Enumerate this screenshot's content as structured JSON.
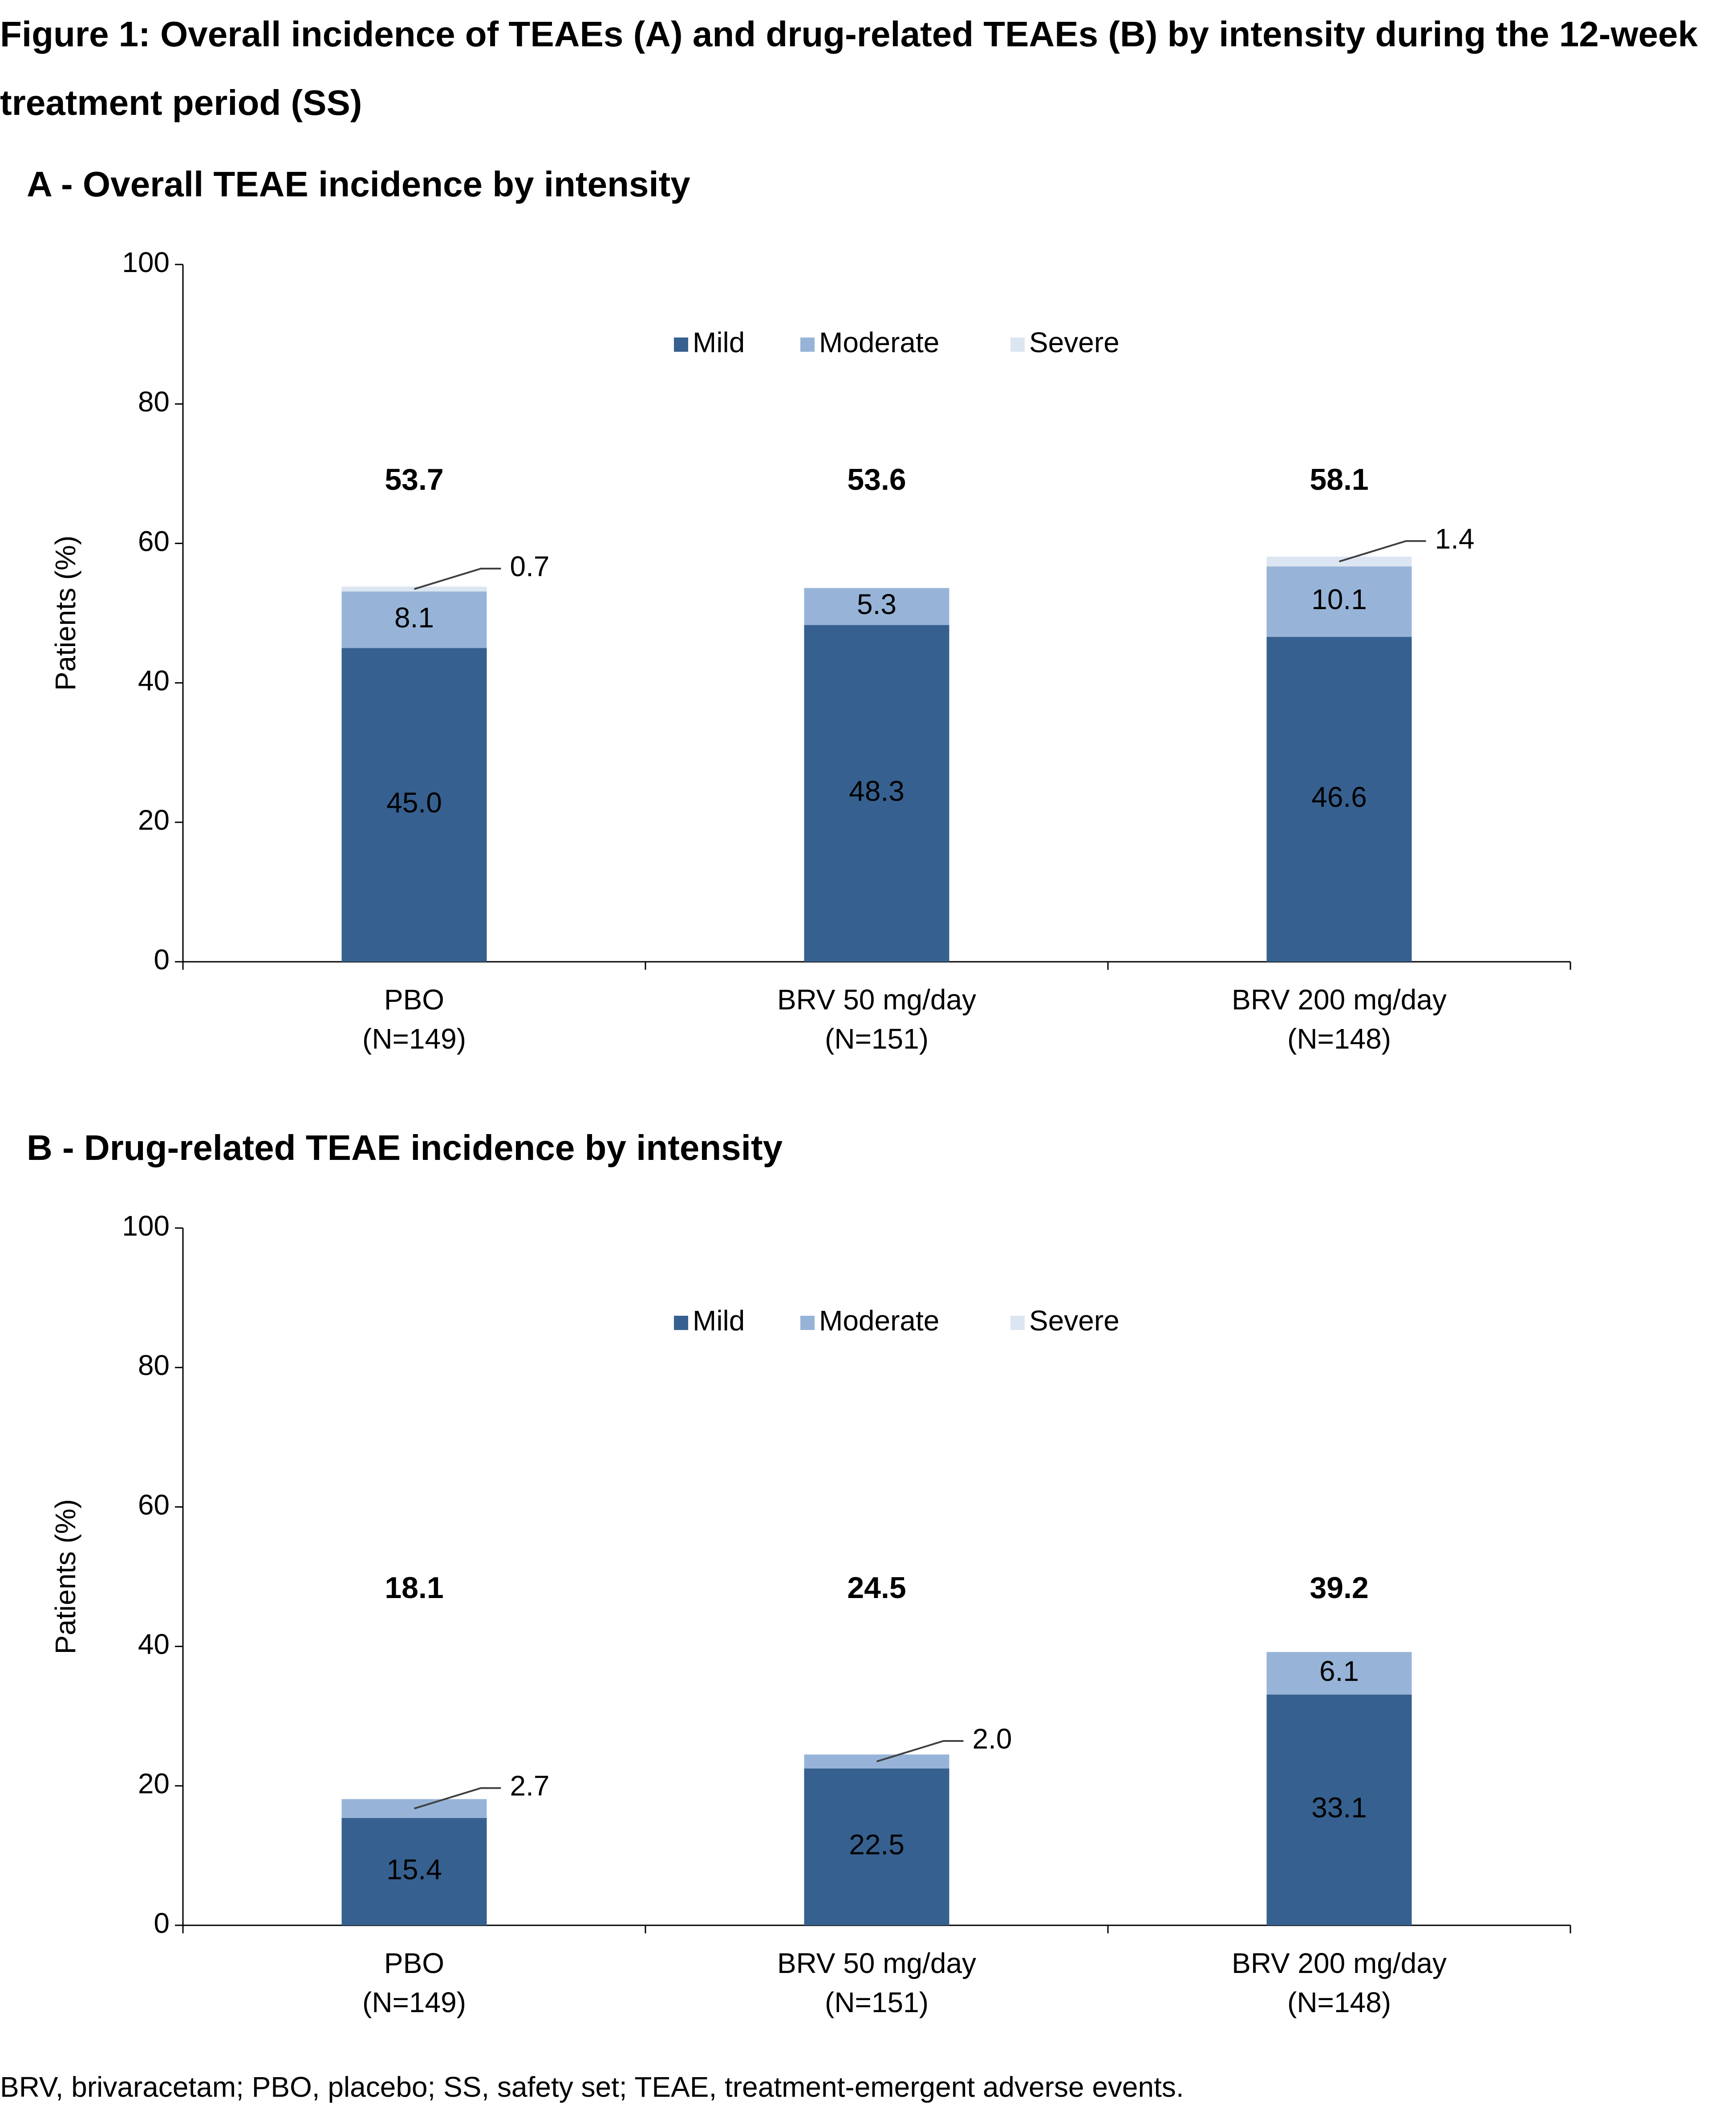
{
  "title": "Figure 1: Overall incidence of TEAEs (A) and drug-related TEAEs (B) by intensity during the 12-week treatment period (SS)",
  "footnote": "BRV, brivaracetam; PBO, placebo; SS, safety set; TEAE, treatment-emergent adverse events.",
  "chart_data": [
    {
      "type": "bar",
      "stacked": true,
      "title": "A - Overall TEAE incidence by intensity",
      "ylabel": "Patients (%)",
      "categories": [
        [
          "PBO",
          "(N=149)"
        ],
        [
          "BRV 50 mg/day",
          "(N=151)"
        ],
        [
          "BRV 200 mg/day",
          "(N=148)"
        ]
      ],
      "series": [
        {
          "name": "Mild",
          "color": "#36608f",
          "values": [
            45.0,
            48.3,
            46.6
          ],
          "value_labels": [
            "45.0",
            "48.3",
            "46.6"
          ]
        },
        {
          "name": "Moderate",
          "color": "#97b4d8",
          "values": [
            8.1,
            5.3,
            10.1
          ],
          "value_labels": [
            "8.1",
            "5.3",
            "10.1"
          ]
        },
        {
          "name": "Severe",
          "color": "#dce6f2",
          "values": [
            0.7,
            0,
            1.4
          ],
          "value_labels": [
            "0.7",
            null,
            "1.4"
          ]
        }
      ],
      "totals": [
        53.7,
        53.6,
        58.1
      ],
      "ylim": [
        0,
        100
      ],
      "yticks": [
        0,
        20,
        40,
        60,
        80,
        100
      ],
      "legend": "top"
    },
    {
      "type": "bar",
      "stacked": true,
      "title": "B - Drug-related TEAE incidence by intensity",
      "ylabel": "Patients (%)",
      "categories": [
        [
          "PBO",
          "(N=149)"
        ],
        [
          "BRV 50 mg/day",
          "(N=151)"
        ],
        [
          "BRV 200 mg/day",
          "(N=148)"
        ]
      ],
      "series": [
        {
          "name": "Mild",
          "color": "#36608f",
          "values": [
            15.4,
            22.5,
            33.1
          ],
          "value_labels": [
            "15.4",
            "22.5",
            "33.1"
          ]
        },
        {
          "name": "Moderate",
          "color": "#97b4d8",
          "values": [
            2.7,
            2.0,
            6.1
          ],
          "value_labels": [
            "2.7",
            "2.0",
            "6.1"
          ]
        },
        {
          "name": "Severe",
          "color": "#dce6f2",
          "values": [
            0,
            0,
            0
          ],
          "value_labels": [
            null,
            null,
            null
          ]
        }
      ],
      "totals": [
        18.1,
        24.5,
        39.2
      ],
      "ylim": [
        0,
        100
      ],
      "yticks": [
        0,
        20,
        40,
        60,
        80,
        100
      ],
      "legend": "top"
    }
  ]
}
